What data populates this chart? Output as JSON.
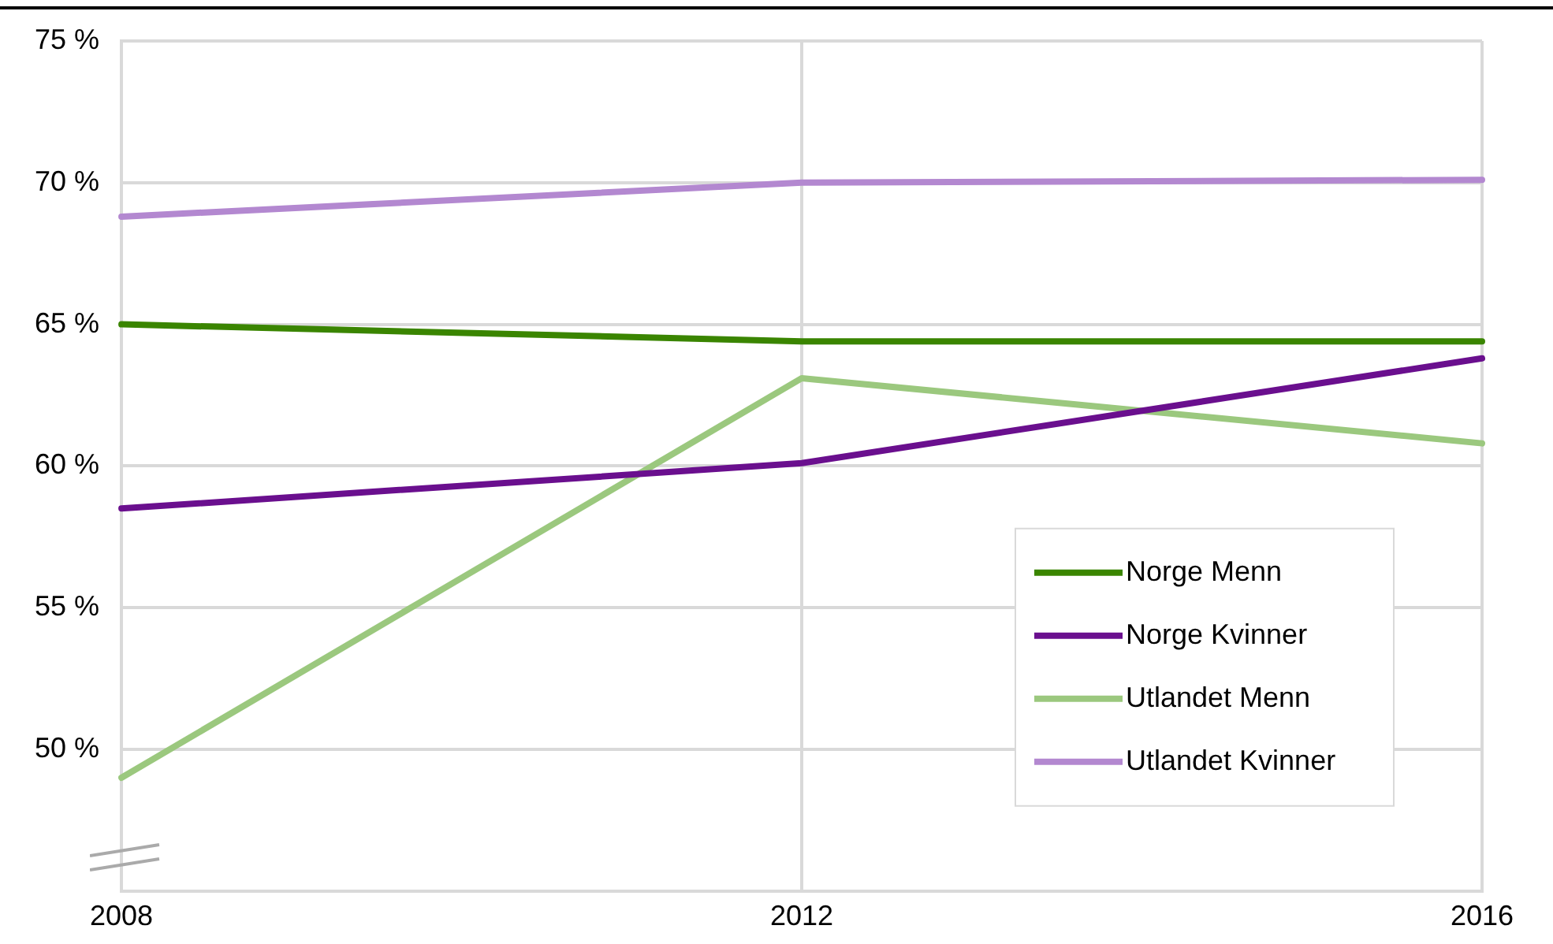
{
  "chart_data": {
    "type": "line",
    "categories": [
      "2008",
      "2012",
      "2016"
    ],
    "series": [
      {
        "name": "Norge Menn",
        "color": "#3a8500",
        "values": [
          65.0,
          64.4,
          64.4
        ]
      },
      {
        "name": "Norge Kvinner",
        "color": "#6a0f8e",
        "values": [
          58.5,
          60.1,
          63.8
        ]
      },
      {
        "name": "Utlandet Menn",
        "color": "#9bc87e",
        "values": [
          49.0,
          63.1,
          60.8
        ]
      },
      {
        "name": "Utlandet Kvinner",
        "color": "#b388d0",
        "values": [
          68.8,
          70.0,
          70.1
        ]
      }
    ],
    "ylim": [
      45,
      75
    ],
    "yticks": [
      {
        "value": 50,
        "label": "50 %"
      },
      {
        "value": 55,
        "label": "55 %"
      },
      {
        "value": 60,
        "label": "60 %"
      },
      {
        "value": 65,
        "label": "65 %"
      },
      {
        "value": 70,
        "label": "70 %"
      },
      {
        "value": 75,
        "label": "75 %"
      }
    ],
    "grid": true,
    "legend": "bottom right",
    "marker": "none",
    "line_style": "solid"
  }
}
